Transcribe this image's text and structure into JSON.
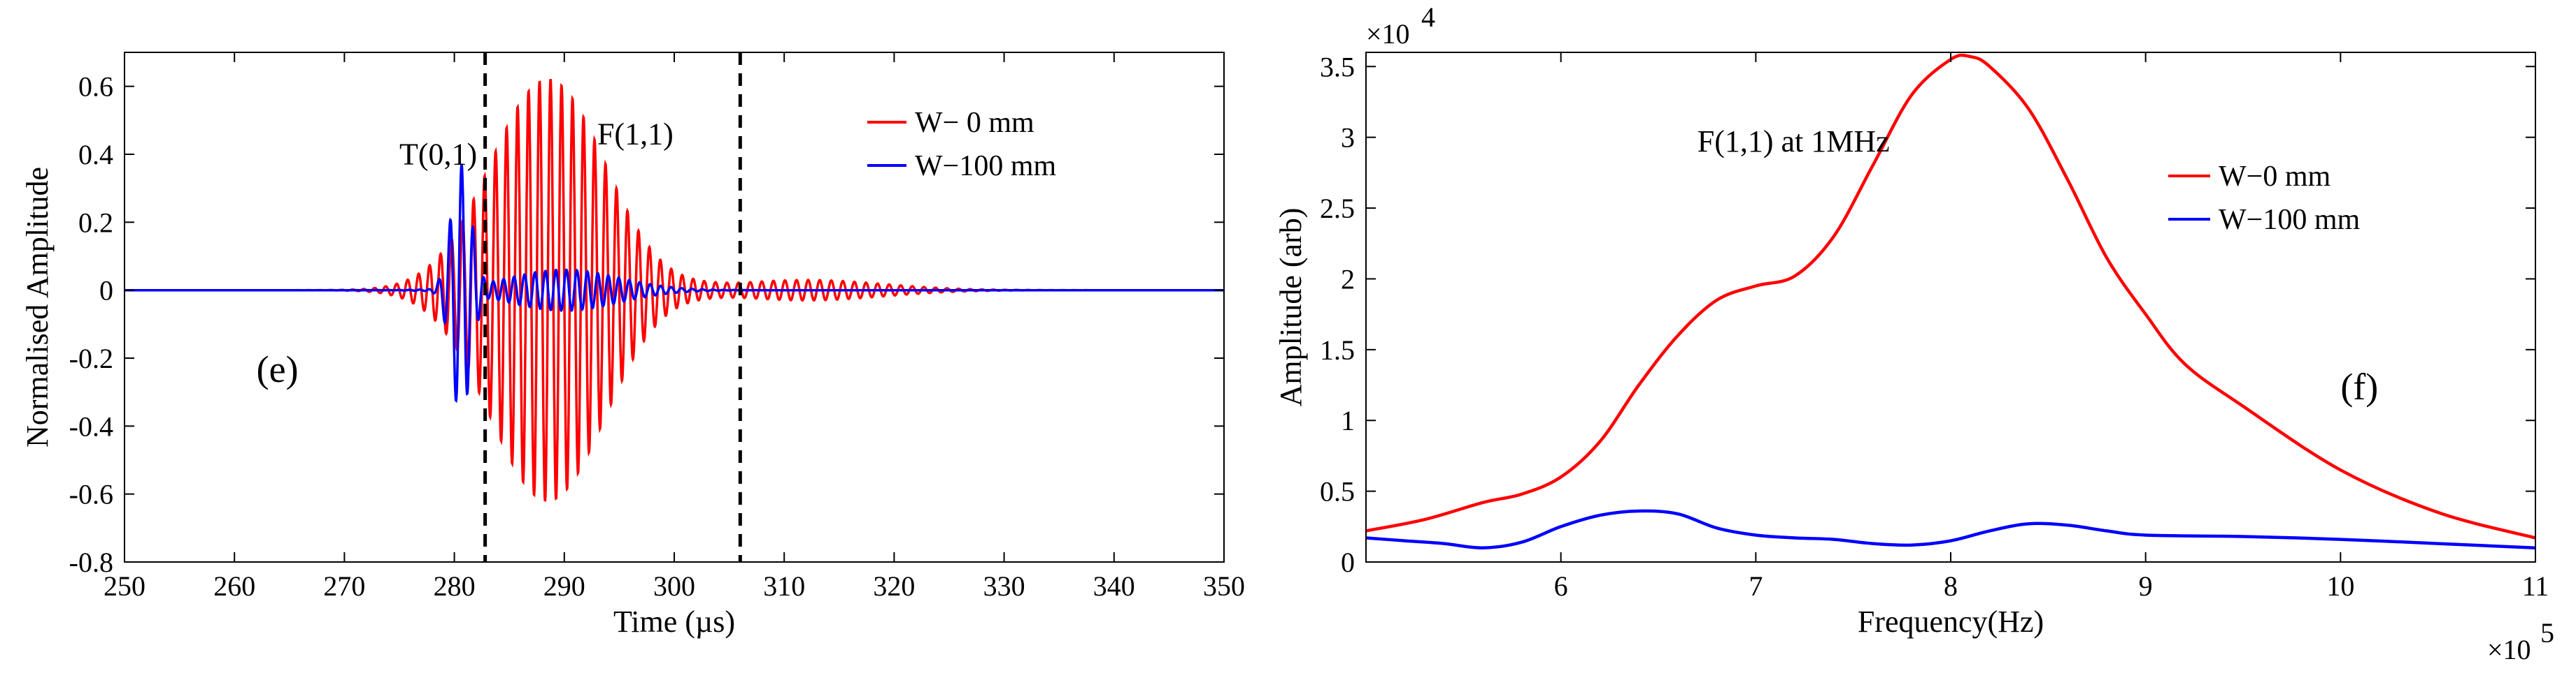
{
  "figure": {
    "background": "#ffffff"
  },
  "chart_data": [
    {
      "id": "time",
      "type": "line",
      "title": "",
      "xlabel": "Time (µs)",
      "ylabel": "Normalised Amplitude",
      "xlim": [
        250,
        350
      ],
      "ylim": [
        -0.8,
        0.7
      ],
      "xticks": [
        250,
        260,
        270,
        280,
        290,
        300,
        310,
        320,
        330,
        340,
        350
      ],
      "xtick_labels": [
        "250",
        "260",
        "270",
        "280",
        "290",
        "300",
        "310",
        "320",
        "330",
        "340",
        "350"
      ],
      "yticks": [
        -0.8,
        -0.6,
        -0.4,
        -0.2,
        0,
        0.2,
        0.4,
        0.6
      ],
      "ytick_labels": [
        "-0.8",
        "-0.6",
        "-0.4",
        "-0.2",
        "0",
        "0.2",
        "0.4",
        "0.6"
      ],
      "grid": false,
      "legend_position": "top-right",
      "series": [
        {
          "name": "W− 0 mm",
          "color": "#ff0000",
          "model": "wavepackets",
          "packets": [
            {
              "center": 288.5,
              "amp": 0.62,
              "sigma": 5.2,
              "freq": 1.0,
              "phase": 0.0
            },
            {
              "center": 312.0,
              "amp": 0.03,
              "sigma": 7.0,
              "freq": 0.95,
              "phase": 0.5
            }
          ]
        },
        {
          "name": "W−100 mm",
          "color": "#0000ff",
          "model": "wavepackets",
          "packets": [
            {
              "center": 280.6,
              "amp": 0.36,
              "sigma": 0.9,
              "freq": 0.95,
              "phase": 1.2
            },
            {
              "center": 290.0,
              "amp": 0.06,
              "sigma": 5.0,
              "freq": 1.05,
              "phase": 0.3
            }
          ]
        }
      ],
      "vlines": [
        282.8,
        306.0
      ],
      "annotations": [
        {
          "text": "T(0,1)",
          "x": 275,
          "y": 0.37
        },
        {
          "text": "F(1,1)",
          "x": 293,
          "y": 0.43
        },
        {
          "text": "(e)",
          "x": 262,
          "y": -0.27
        }
      ]
    },
    {
      "id": "freq",
      "type": "line",
      "title": "",
      "xlabel": "Frequency(Hz)",
      "ylabel": "Amplitude (arb)",
      "xlim": [
        5,
        11
      ],
      "ylim": [
        0,
        3.6
      ],
      "x_multiplier": "×10",
      "x_exponent": "5",
      "y_multiplier": "×10",
      "y_exponent": "4",
      "xticks": [
        6,
        7,
        8,
        9,
        10,
        11
      ],
      "xtick_labels": [
        "6",
        "7",
        "8",
        "9",
        "10",
        "11"
      ],
      "yticks": [
        0,
        0.5,
        1,
        1.5,
        2,
        2.5,
        3,
        3.5
      ],
      "ytick_labels": [
        "0",
        "0.5",
        "1",
        "1.5",
        "2",
        "2.5",
        "3",
        "3.5"
      ],
      "grid": false,
      "legend_position": "right",
      "series": [
        {
          "name": "W−0 mm",
          "color": "#ff0000",
          "x": [
            5.0,
            5.3,
            5.6,
            5.8,
            6.0,
            6.2,
            6.4,
            6.6,
            6.8,
            7.0,
            7.2,
            7.4,
            7.6,
            7.8,
            8.0,
            8.1,
            8.2,
            8.4,
            8.6,
            8.8,
            9.0,
            9.2,
            9.5,
            10.0,
            10.5,
            11.0
          ],
          "y": [
            0.22,
            0.3,
            0.42,
            0.48,
            0.6,
            0.85,
            1.25,
            1.6,
            1.85,
            1.95,
            2.02,
            2.3,
            2.8,
            3.3,
            3.55,
            3.57,
            3.5,
            3.2,
            2.7,
            2.15,
            1.75,
            1.4,
            1.1,
            0.65,
            0.35,
            0.17
          ]
        },
        {
          "name": "W−100 mm",
          "color": "#0000ff",
          "x": [
            5.0,
            5.2,
            5.4,
            5.6,
            5.8,
            6.0,
            6.2,
            6.4,
            6.6,
            6.8,
            7.0,
            7.2,
            7.4,
            7.6,
            7.8,
            8.0,
            8.2,
            8.4,
            8.6,
            8.8,
            9.0,
            9.5,
            10.0,
            10.5,
            11.0
          ],
          "y": [
            0.17,
            0.15,
            0.13,
            0.1,
            0.14,
            0.25,
            0.33,
            0.36,
            0.34,
            0.24,
            0.19,
            0.17,
            0.16,
            0.13,
            0.12,
            0.15,
            0.22,
            0.27,
            0.26,
            0.22,
            0.19,
            0.18,
            0.16,
            0.13,
            0.1
          ]
        }
      ],
      "annotations": [
        {
          "text": "F(1,1) at 1MHz",
          "x": 6.7,
          "y": 2.9
        },
        {
          "text": "(f)",
          "x": 10.0,
          "y": 1.15
        }
      ]
    }
  ]
}
